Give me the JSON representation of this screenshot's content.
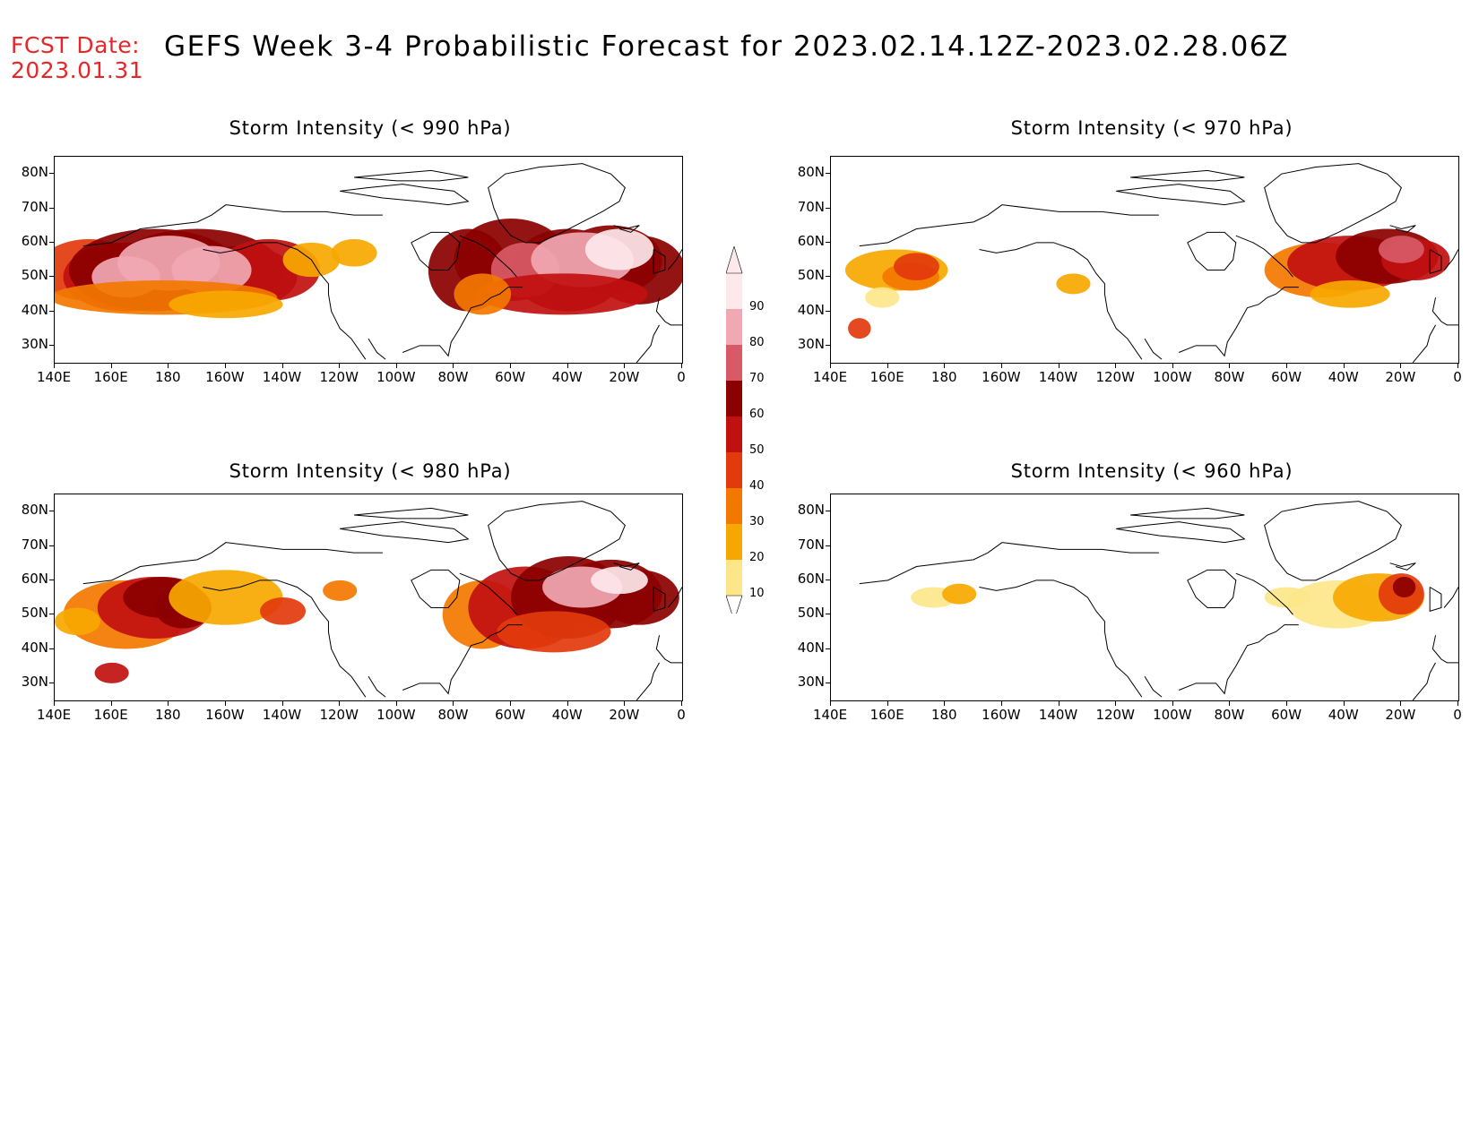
{
  "header": {
    "fcst_line1": "FCST Date:",
    "fcst_line2": "2023.01.31",
    "title": "GEFS Week 3-4 Probabilistic Forecast for 2023.02.14.12Z-2023.02.28.06Z"
  },
  "panels": [
    {
      "id": "p990",
      "title": "Storm Intensity (< 990 hPa)"
    },
    {
      "id": "p970",
      "title": "Storm Intensity (< 970 hPa)"
    },
    {
      "id": "p980",
      "title": "Storm Intensity (< 980 hPa)"
    },
    {
      "id": "p960",
      "title": "Storm Intensity (< 960 hPa)"
    }
  ],
  "axes": {
    "lat_labels": [
      "80N",
      "70N",
      "60N",
      "50N",
      "40N",
      "30N"
    ],
    "lon_labels": [
      "140E",
      "160E",
      "180",
      "160W",
      "140W",
      "120W",
      "100W",
      "80W",
      "60W",
      "40W",
      "20W",
      "0"
    ]
  },
  "legend": {
    "levels": [
      "10",
      "20",
      "30",
      "40",
      "50",
      "60",
      "70",
      "80",
      "90"
    ],
    "colors": [
      "#fff6b8",
      "#fde68a",
      "#f7a800",
      "#f37800",
      "#e23a0c",
      "#c11010",
      "#8b0000",
      "#d85a66",
      "#f0a8b2",
      "#fde8ec"
    ]
  }
}
